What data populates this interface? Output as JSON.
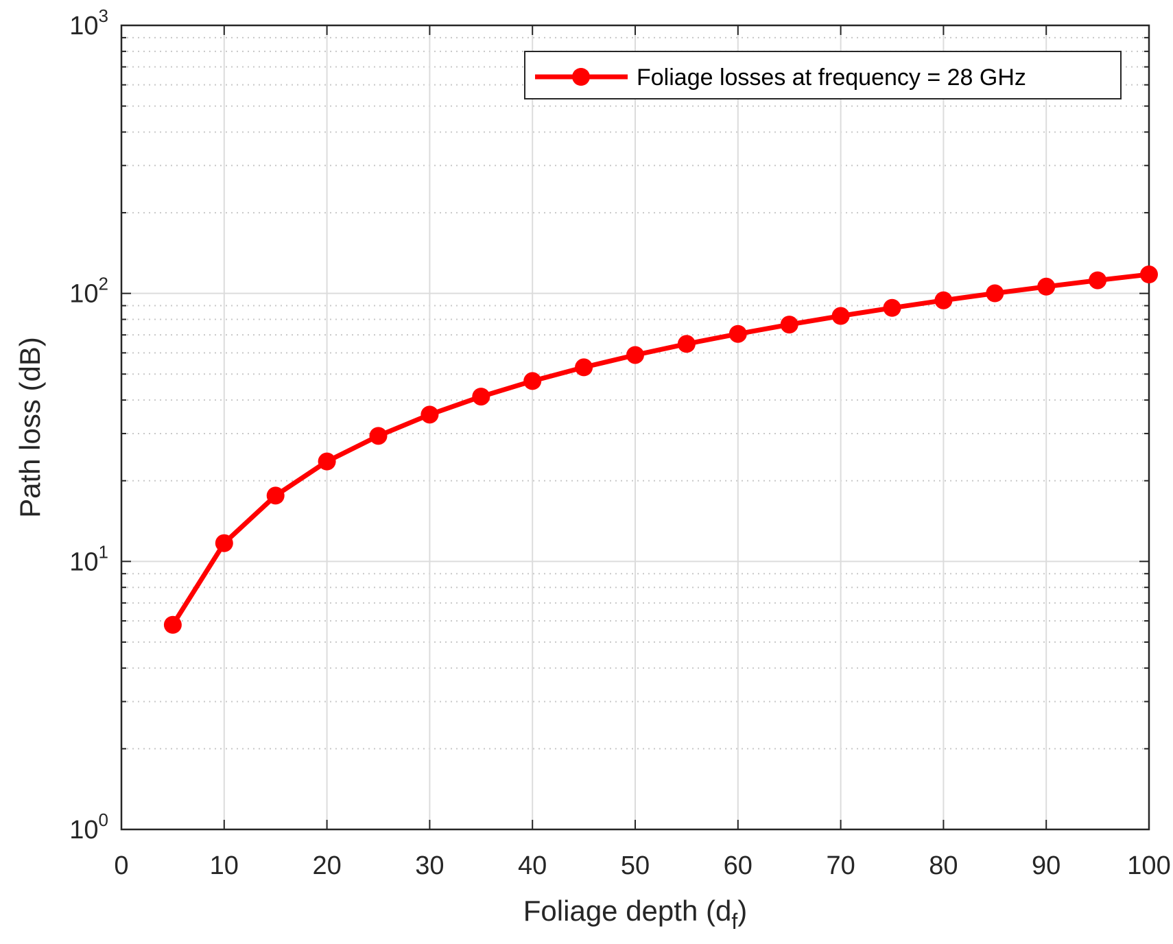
{
  "chart_data": {
    "type": "line",
    "xlabel": "Foliage depth (d",
    "xlabel_subscript": "f",
    "xlabel_close": ")",
    "ylabel": "Path loss (dB)",
    "xlim": [
      0,
      100
    ],
    "ylim": [
      1,
      1000
    ],
    "y_scale": "log",
    "grid": true,
    "legend_position": "top-right",
    "x_ticks": [
      0,
      10,
      20,
      30,
      40,
      50,
      60,
      70,
      80,
      90,
      100
    ],
    "x_tick_labels": [
      "0",
      "10",
      "20",
      "30",
      "40",
      "50",
      "60",
      "70",
      "80",
      "90",
      "100"
    ],
    "y_ticks": [
      {
        "base": "10",
        "exp": "0",
        "value": 1
      },
      {
        "base": "10",
        "exp": "1",
        "value": 10
      },
      {
        "base": "10",
        "exp": "2",
        "value": 100
      },
      {
        "base": "10",
        "exp": "3",
        "value": 1000
      }
    ],
    "series": [
      {
        "name": "Foliage losses at frequency = 28 GHz",
        "color": "#ff0000",
        "marker": "circle",
        "x": [
          5,
          10,
          15,
          20,
          25,
          30,
          35,
          40,
          45,
          50,
          55,
          60,
          65,
          70,
          75,
          80,
          85,
          90,
          95,
          100
        ],
        "y": [
          5.8,
          11.7,
          17.6,
          23.6,
          29.4,
          35.3,
          41.2,
          47.1,
          53.0,
          58.9,
          64.8,
          70.6,
          76.5,
          82.4,
          88.3,
          94.2,
          100.1,
          106.0,
          111.9,
          117.7
        ]
      }
    ]
  }
}
